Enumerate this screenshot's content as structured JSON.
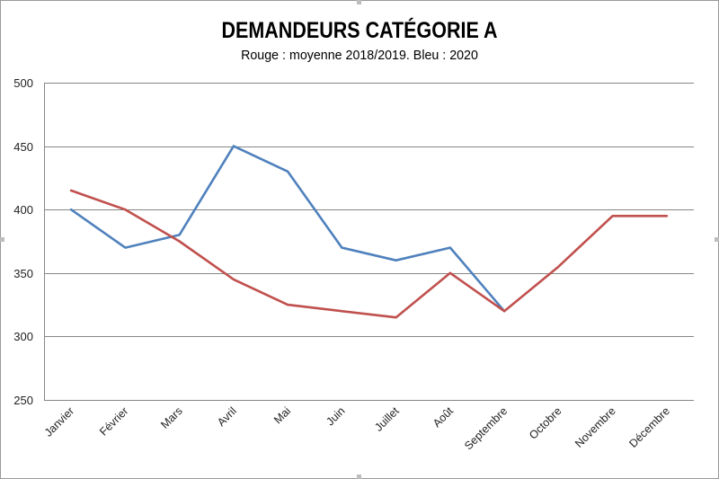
{
  "chart_data": {
    "type": "line",
    "title": "DEMANDEURS CATÉGORIE A",
    "subtitle": "Rouge : moyenne 2018/2019. Bleu : 2020",
    "categories": [
      "Janvier",
      "Février",
      "Mars",
      "Avril",
      "Mai",
      "Juin",
      "Juillet",
      "Août",
      "Septembre",
      "Octobre",
      "Novembre",
      "Décembre"
    ],
    "ylim": [
      250,
      500
    ],
    "yticks": [
      250,
      300,
      350,
      400,
      450,
      500
    ],
    "grid": true,
    "series": [
      {
        "color": "#c0504d",
        "values": [
          415,
          400,
          375,
          345,
          325,
          320,
          315,
          350,
          320,
          355,
          395,
          395
        ]
      },
      {
        "color": "#4f81bd",
        "values": [
          400,
          370,
          380,
          450,
          430,
          370,
          360,
          370,
          320,
          null,
          null,
          null
        ]
      }
    ]
  }
}
